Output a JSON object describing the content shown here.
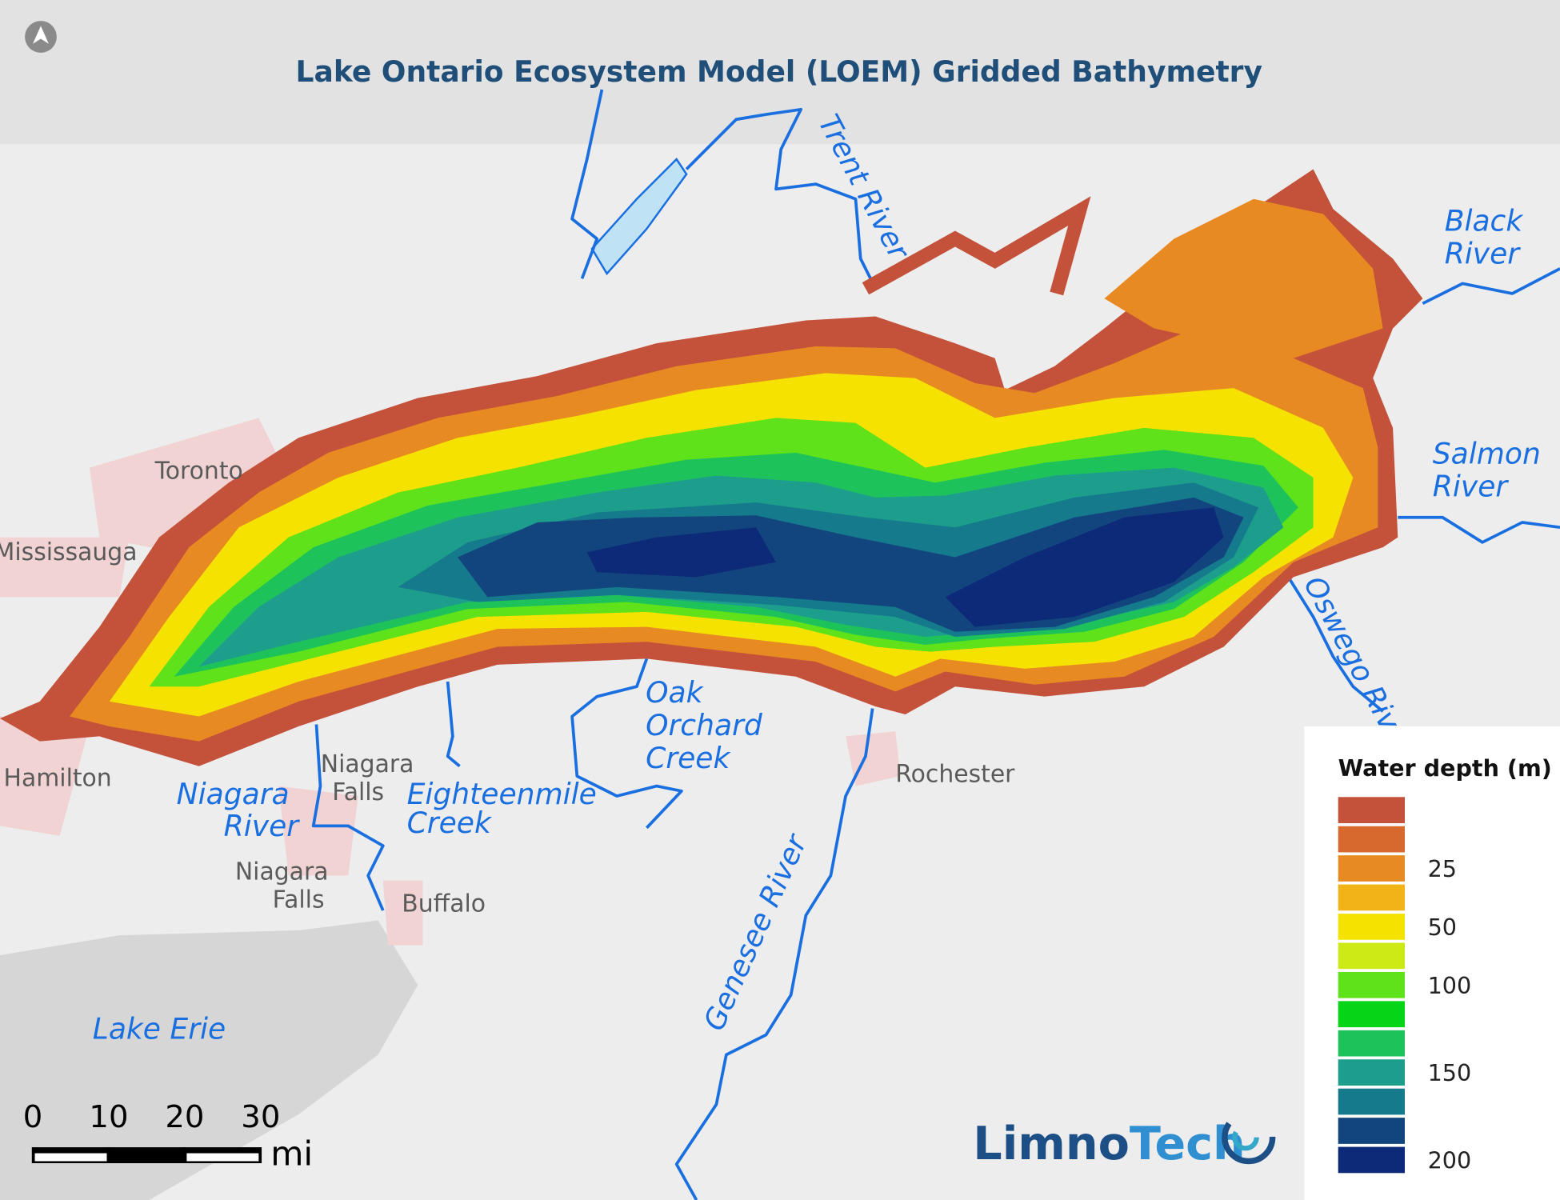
{
  "title": "Lake Ontario Ecosystem Model (LOEM) Gridded Bathymetry",
  "places": [
    "Toronto",
    "Mississauga",
    "Hamilton",
    [
      "Niagara",
      "Falls"
    ],
    [
      "Niagara",
      "Falls"
    ],
    "Buffalo",
    "Rochester"
  ],
  "water_labels": [
    "Trent River",
    [
      "Black",
      "River"
    ],
    [
      "Salmon",
      "River"
    ],
    "Oswego River",
    [
      "Oak",
      "Orchard",
      "Creek"
    ],
    [
      "Eighteenmile",
      "Creek"
    ],
    [
      "Niagara",
      "River"
    ],
    "Genesee River",
    "Lake Erie"
  ],
  "legend": {
    "title": "Water depth (m)",
    "items": [
      {
        "color": "#c4513a"
      },
      {
        "color": "#d8692e"
      },
      {
        "color": "#e88a22",
        "label": 25
      },
      {
        "color": "#f2b318"
      },
      {
        "color": "#f6e200",
        "label": 50
      },
      {
        "color": "#cdea16"
      },
      {
        "color": "#5fe21a",
        "label": 100
      },
      {
        "color": "#06d416"
      },
      {
        "color": "#1ec25a"
      },
      {
        "color": "#1d9e8c",
        "label": 150
      },
      {
        "color": "#157a8c"
      },
      {
        "color": "#12457e"
      },
      {
        "color": "#0d2a79",
        "label": 200
      }
    ]
  },
  "scale_bar": {
    "ticks": [
      0,
      10,
      20,
      30
    ],
    "unit": "mi"
  },
  "logo": [
    "Limno",
    "Tech"
  ]
}
